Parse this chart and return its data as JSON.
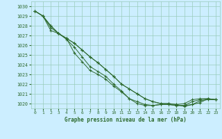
{
  "title": "Graphe pression niveau de la mer (hPa)",
  "bg_color": "#cceeff",
  "grid_color": "#99ccbb",
  "line_color": "#2d6a2d",
  "xlim": [
    -0.5,
    23.5
  ],
  "ylim": [
    1019.5,
    1030.5
  ],
  "yticks": [
    1020,
    1021,
    1022,
    1023,
    1024,
    1025,
    1026,
    1027,
    1028,
    1029,
    1030
  ],
  "xticks": [
    0,
    1,
    2,
    3,
    4,
    5,
    6,
    7,
    8,
    9,
    10,
    11,
    12,
    13,
    14,
    15,
    16,
    17,
    18,
    19,
    20,
    21,
    22,
    23
  ],
  "series": [
    {
      "x": [
        0,
        1,
        2,
        3,
        4,
        5,
        6,
        7,
        8,
        9,
        10,
        11,
        12,
        13,
        14,
        15,
        16,
        17,
        18,
        19,
        20,
        21,
        22,
        23
      ],
      "y": [
        1029.5,
        1029.0,
        1027.8,
        1027.2,
        1026.7,
        1025.2,
        1024.3,
        1023.4,
        1023.0,
        1022.5,
        1021.8,
        1021.2,
        1020.5,
        1020.2,
        1019.9,
        1019.8,
        1019.9,
        1019.9,
        1019.8,
        1019.8,
        1019.9,
        1020.3,
        1020.4,
        1020.4
      ]
    },
    {
      "x": [
        0,
        1,
        2,
        3,
        4,
        5,
        6,
        7,
        8,
        9,
        10,
        11,
        12,
        13,
        14,
        15,
        16,
        17,
        18,
        19,
        20,
        21,
        22,
        23
      ],
      "y": [
        1029.5,
        1029.0,
        1027.5,
        1027.2,
        1026.6,
        1025.8,
        1024.8,
        1023.8,
        1023.3,
        1022.8,
        1022.0,
        1021.3,
        1020.5,
        1020.0,
        1019.8,
        1019.8,
        1019.9,
        1019.9,
        1019.8,
        1019.8,
        1020.2,
        1020.4,
        1020.5,
        1020.4
      ]
    },
    {
      "x": [
        0,
        1,
        2,
        3,
        4,
        5,
        6,
        7,
        8,
        9,
        10,
        11,
        12,
        13,
        14,
        15,
        16,
        17,
        18,
        19,
        20,
        21,
        22,
        23
      ],
      "y": [
        1029.5,
        1029.0,
        1028.0,
        1027.2,
        1026.7,
        1026.2,
        1025.5,
        1024.8,
        1024.2,
        1023.5,
        1022.8,
        1022.0,
        1021.5,
        1021.0,
        1020.5,
        1020.2,
        1020.0,
        1020.0,
        1019.9,
        1020.0,
        1020.4,
        1020.5,
        1020.5,
        1020.4
      ]
    },
    {
      "x": [
        0,
        1,
        2,
        3,
        4,
        5,
        6,
        7,
        8,
        9,
        10,
        11,
        12,
        13,
        14,
        15,
        16,
        17,
        18,
        19,
        20,
        21,
        22,
        23
      ],
      "y": [
        1029.5,
        1029.0,
        1028.0,
        1027.2,
        1026.7,
        1026.2,
        1025.5,
        1024.8,
        1024.2,
        1023.5,
        1022.8,
        1022.0,
        1021.5,
        1021.0,
        1020.5,
        1020.2,
        1020.0,
        1020.0,
        1019.9,
        1019.7,
        1019.9,
        1020.1,
        1020.5,
        1020.4
      ]
    }
  ]
}
